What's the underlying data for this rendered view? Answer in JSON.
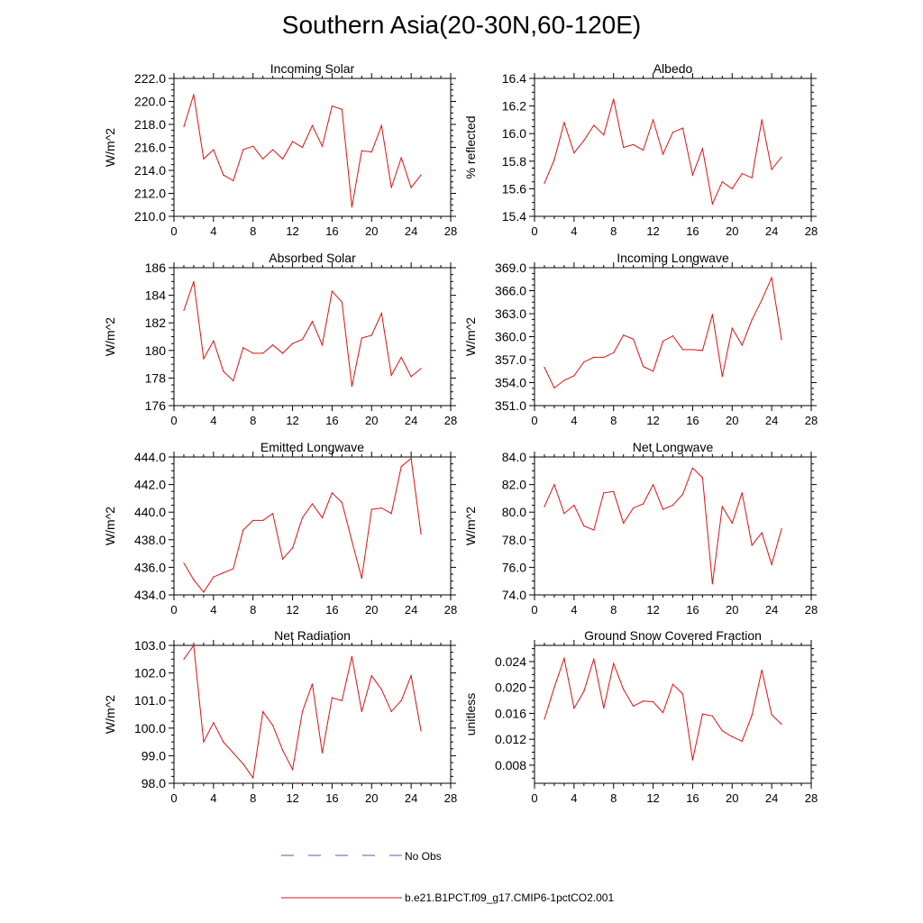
{
  "page": {
    "title": "Southern Asia(20-30N,60-120E)"
  },
  "legend": {
    "obs_label": "No Obs",
    "obs_color": "#5a5aa8",
    "model_label": "b.e21.B1PCT.f09_g17.CMIP6-1pctCO2.001",
    "model_color": "#e01010"
  },
  "chart_data": [
    {
      "type": "line",
      "title": "Incoming Solar",
      "ylabel": "W/m^2",
      "x": [
        1,
        2,
        3,
        4,
        5,
        6,
        7,
        8,
        9,
        10,
        11,
        12,
        13,
        14,
        15,
        16,
        17,
        18,
        19,
        20,
        21,
        22,
        23,
        24,
        25
      ],
      "values": [
        217.8,
        220.6,
        215.0,
        215.8,
        213.6,
        213.1,
        215.8,
        216.1,
        215.0,
        215.8,
        215.0,
        216.5,
        216.0,
        217.9,
        216.1,
        219.6,
        219.3,
        210.8,
        215.7,
        215.6,
        217.9,
        212.5,
        215.1,
        212.5,
        213.6
      ],
      "xlim": [
        0,
        28
      ],
      "xticks": [
        0,
        4,
        8,
        12,
        16,
        20,
        24,
        28
      ],
      "ylim": [
        210,
        222
      ],
      "yticks": [
        210,
        212,
        214,
        216,
        218,
        220,
        222
      ],
      "ydecimals": 1
    },
    {
      "type": "line",
      "title": "Albedo",
      "ylabel": "% reflected",
      "x": [
        1,
        2,
        3,
        4,
        5,
        6,
        7,
        8,
        9,
        10,
        11,
        12,
        13,
        14,
        15,
        16,
        17,
        18,
        19,
        20,
        21,
        22,
        23,
        24,
        25
      ],
      "values": [
        15.64,
        15.81,
        16.08,
        15.86,
        15.95,
        16.06,
        15.99,
        16.25,
        15.9,
        15.92,
        15.88,
        16.1,
        15.85,
        16.01,
        16.04,
        15.7,
        15.89,
        15.49,
        15.65,
        15.6,
        15.71,
        15.68,
        16.1,
        15.74,
        15.83
      ],
      "xlim": [
        0,
        28
      ],
      "xticks": [
        0,
        4,
        8,
        12,
        16,
        20,
        24,
        28
      ],
      "ylim": [
        15.4,
        16.4
      ],
      "yticks": [
        15.4,
        15.6,
        15.8,
        16.0,
        16.2,
        16.4
      ],
      "ydecimals": 1
    },
    {
      "type": "line",
      "title": "Absorbed Solar",
      "ylabel": "W/m^2",
      "x": [
        1,
        2,
        3,
        4,
        5,
        6,
        7,
        8,
        9,
        10,
        11,
        12,
        13,
        14,
        15,
        16,
        17,
        18,
        19,
        20,
        21,
        22,
        23,
        24,
        25
      ],
      "values": [
        182.9,
        185.0,
        179.4,
        180.7,
        178.5,
        177.8,
        180.2,
        179.8,
        179.8,
        180.4,
        179.8,
        180.5,
        180.8,
        182.1,
        180.4,
        184.3,
        183.5,
        177.4,
        180.9,
        181.1,
        182.7,
        178.2,
        179.5,
        178.1,
        178.7
      ],
      "xlim": [
        0,
        28
      ],
      "xticks": [
        0,
        4,
        8,
        12,
        16,
        20,
        24,
        28
      ],
      "ylim": [
        176,
        186
      ],
      "yticks": [
        176,
        178,
        180,
        182,
        184,
        186
      ],
      "ydecimals": 0
    },
    {
      "type": "line",
      "title": "Incoming Longwave",
      "ylabel": "W/m^2",
      "x": [
        1,
        2,
        3,
        4,
        5,
        6,
        7,
        8,
        9,
        10,
        11,
        12,
        13,
        14,
        15,
        16,
        17,
        18,
        19,
        20,
        21,
        22,
        23,
        24,
        25
      ],
      "values": [
        356.0,
        353.3,
        354.3,
        354.9,
        356.7,
        357.3,
        357.3,
        357.9,
        360.2,
        359.7,
        356.1,
        355.5,
        359.4,
        360.1,
        358.3,
        358.3,
        358.2,
        362.9,
        354.8,
        361.1,
        358.9,
        362.2,
        364.8,
        367.7,
        359.6
      ],
      "xlim": [
        0,
        28
      ],
      "xticks": [
        0,
        4,
        8,
        12,
        16,
        20,
        24,
        28
      ],
      "ylim": [
        351,
        369
      ],
      "yticks": [
        351,
        354,
        357,
        360,
        363,
        366,
        369
      ],
      "ydecimals": 1
    },
    {
      "type": "line",
      "title": "Emitted Longwave",
      "ylabel": "W/m^2",
      "x": [
        1,
        2,
        3,
        4,
        5,
        6,
        7,
        8,
        9,
        10,
        11,
        12,
        13,
        14,
        15,
        16,
        17,
        18,
        19,
        20,
        21,
        22,
        23,
        24,
        25
      ],
      "values": [
        436.3,
        435.1,
        434.2,
        435.3,
        435.6,
        435.9,
        438.7,
        439.4,
        439.4,
        439.9,
        436.6,
        437.4,
        439.6,
        440.6,
        439.6,
        441.4,
        440.7,
        437.9,
        435.2,
        440.2,
        440.3,
        439.9,
        443.3,
        443.9,
        438.4
      ],
      "xlim": [
        0,
        28
      ],
      "xticks": [
        0,
        4,
        8,
        12,
        16,
        20,
        24,
        28
      ],
      "ylim": [
        434,
        444
      ],
      "yticks": [
        434,
        436,
        438,
        440,
        442,
        444
      ],
      "ydecimals": 1
    },
    {
      "type": "line",
      "title": "Net Longwave",
      "ylabel": "W/m^2",
      "x": [
        1,
        2,
        3,
        4,
        5,
        6,
        7,
        8,
        9,
        10,
        11,
        12,
        13,
        14,
        15,
        16,
        17,
        18,
        19,
        20,
        21,
        22,
        23,
        24,
        25
      ],
      "values": [
        80.4,
        82.0,
        79.9,
        80.5,
        79.0,
        78.7,
        81.4,
        81.5,
        79.2,
        80.3,
        80.6,
        82.0,
        80.2,
        80.5,
        81.3,
        83.2,
        82.5,
        74.8,
        80.4,
        79.2,
        81.4,
        77.6,
        78.5,
        76.2,
        78.8
      ],
      "xlim": [
        0,
        28
      ],
      "xticks": [
        0,
        4,
        8,
        12,
        16,
        20,
        24,
        28
      ],
      "ylim": [
        74,
        84
      ],
      "yticks": [
        74,
        76,
        78,
        80,
        82,
        84
      ],
      "ydecimals": 1
    },
    {
      "type": "line",
      "title": "Net Radiation",
      "ylabel": "W/m^2",
      "x": [
        1,
        2,
        3,
        4,
        5,
        6,
        7,
        8,
        9,
        10,
        11,
        12,
        13,
        14,
        15,
        16,
        17,
        18,
        19,
        20,
        21,
        22,
        23,
        24,
        25
      ],
      "values": [
        102.5,
        103.0,
        99.5,
        100.2,
        99.5,
        99.1,
        98.7,
        98.2,
        100.6,
        100.1,
        99.2,
        98.5,
        100.6,
        101.6,
        99.1,
        101.1,
        101.0,
        102.6,
        100.6,
        101.9,
        101.4,
        100.6,
        101.0,
        101.9,
        99.9
      ],
      "xlim": [
        0,
        28
      ],
      "xticks": [
        0,
        4,
        8,
        12,
        16,
        20,
        24,
        28
      ],
      "ylim": [
        98,
        103
      ],
      "yticks": [
        98,
        99,
        100,
        101,
        102,
        103
      ],
      "ydecimals": 1
    },
    {
      "type": "line",
      "title": "Ground Snow Covered Fraction",
      "ylabel": "unitless",
      "x": [
        1,
        2,
        3,
        4,
        5,
        6,
        7,
        8,
        9,
        10,
        11,
        12,
        13,
        14,
        15,
        16,
        17,
        18,
        19,
        20,
        21,
        22,
        23,
        24,
        25
      ],
      "values": [
        0.0151,
        0.02,
        0.0245,
        0.0168,
        0.0194,
        0.0244,
        0.0168,
        0.0237,
        0.0197,
        0.0171,
        0.0179,
        0.0178,
        0.0161,
        0.0205,
        0.019,
        0.0088,
        0.0159,
        0.0156,
        0.0133,
        0.0124,
        0.0117,
        0.0157,
        0.0227,
        0.0158,
        0.0143
      ],
      "xlim": [
        0,
        28
      ],
      "xticks": [
        0,
        4,
        8,
        12,
        16,
        20,
        24,
        28
      ],
      "ylim": [
        0.0052,
        0.0265
      ],
      "yticks": [
        0.008,
        0.012,
        0.016,
        0.02,
        0.024
      ],
      "ydecimals": 3
    }
  ]
}
